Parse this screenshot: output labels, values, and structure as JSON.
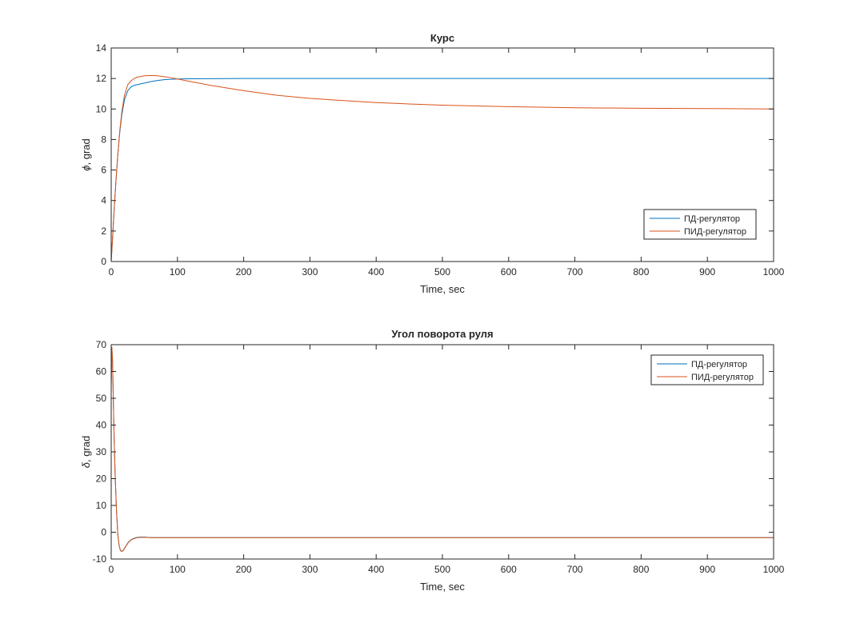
{
  "figure": {
    "background": "#ffffff",
    "axis_color": "#262626",
    "series_colors": [
      "#0072bd",
      "#d95319"
    ]
  },
  "chart_data": [
    {
      "type": "line",
      "title": "Курс",
      "xlabel": "Time, sec",
      "ylabel_symbol": "ϕ",
      "ylabel_rest": ", grad",
      "xlim": [
        0,
        1000
      ],
      "ylim": [
        0,
        14
      ],
      "xticks": [
        0,
        100,
        200,
        300,
        400,
        500,
        600,
        700,
        800,
        900,
        1000
      ],
      "yticks": [
        0,
        2,
        4,
        6,
        8,
        10,
        12,
        14
      ],
      "grid": false,
      "legend_position": "lower-right",
      "series": [
        {
          "name": "ПД-регулятор",
          "color": "#0072bd",
          "x": [
            0,
            2,
            5,
            8,
            10,
            13,
            16,
            20,
            25,
            30,
            35,
            40,
            50,
            60,
            70,
            80,
            90,
            100,
            120,
            150,
            200,
            300,
            500,
            700,
            1000
          ],
          "y": [
            0,
            1.5,
            3.8,
            5.8,
            7.0,
            8.5,
            9.6,
            10.6,
            11.2,
            11.45,
            11.55,
            11.6,
            11.7,
            11.8,
            11.87,
            11.92,
            11.95,
            11.97,
            11.98,
            11.99,
            12.0,
            12.0,
            12.0,
            12.0,
            12.0
          ]
        },
        {
          "name": "ПИД-регулятор",
          "color": "#d95319",
          "x": [
            0,
            2,
            5,
            8,
            10,
            13,
            16,
            20,
            25,
            30,
            35,
            40,
            50,
            60,
            70,
            80,
            90,
            100,
            120,
            150,
            200,
            250,
            300,
            350,
            400,
            450,
            500,
            600,
            700,
            800,
            900,
            1000
          ],
          "y": [
            0,
            1.5,
            3.8,
            5.8,
            7.0,
            8.6,
            9.8,
            10.9,
            11.6,
            11.85,
            12.0,
            12.1,
            12.18,
            12.2,
            12.18,
            12.12,
            12.05,
            11.97,
            11.8,
            11.55,
            11.2,
            10.9,
            10.7,
            10.55,
            10.42,
            10.33,
            10.25,
            10.15,
            10.08,
            10.05,
            10.03,
            10.0
          ]
        }
      ]
    },
    {
      "type": "line",
      "title": "Угол поворота руля",
      "xlabel": "Time, sec",
      "ylabel_symbol": "δ",
      "ylabel_rest": ", grad",
      "xlim": [
        0,
        1000
      ],
      "ylim": [
        -10,
        70
      ],
      "xticks": [
        0,
        100,
        200,
        300,
        400,
        500,
        600,
        700,
        800,
        900,
        1000
      ],
      "yticks": [
        -10,
        0,
        10,
        20,
        30,
        40,
        50,
        60,
        70
      ],
      "grid": false,
      "legend_position": "upper-right",
      "series": [
        {
          "name": "ПД-регулятор",
          "color": "#0072bd",
          "x": [
            0,
            1,
            2,
            3,
            4,
            5,
            6,
            8,
            10,
            12,
            14,
            16,
            18,
            20,
            23,
            26,
            30,
            35,
            40,
            45,
            50,
            60,
            80,
            100,
            200,
            500,
            1000
          ],
          "y": [
            55,
            69,
            64,
            52,
            40,
            30,
            21,
            8,
            -1,
            -5,
            -6.8,
            -7.1,
            -6.8,
            -6.0,
            -4.8,
            -3.7,
            -2.8,
            -2.2,
            -1.9,
            -1.8,
            -1.8,
            -2.0,
            -2.0,
            -2.0,
            -2.0,
            -2.0,
            -2.0
          ]
        },
        {
          "name": "ПИД-регулятор",
          "color": "#d95319",
          "x": [
            0,
            1,
            2,
            3,
            4,
            5,
            6,
            8,
            10,
            12,
            14,
            16,
            18,
            20,
            23,
            26,
            30,
            35,
            40,
            45,
            50,
            60,
            80,
            100,
            200,
            500,
            1000
          ],
          "y": [
            55,
            69,
            64,
            52,
            40,
            30,
            21,
            8,
            -1,
            -5,
            -6.9,
            -7.2,
            -6.9,
            -6.1,
            -4.9,
            -3.8,
            -2.9,
            -2.3,
            -2.0,
            -1.9,
            -1.9,
            -2.0,
            -2.0,
            -2.0,
            -2.0,
            -2.0,
            -2.0
          ]
        }
      ]
    }
  ]
}
